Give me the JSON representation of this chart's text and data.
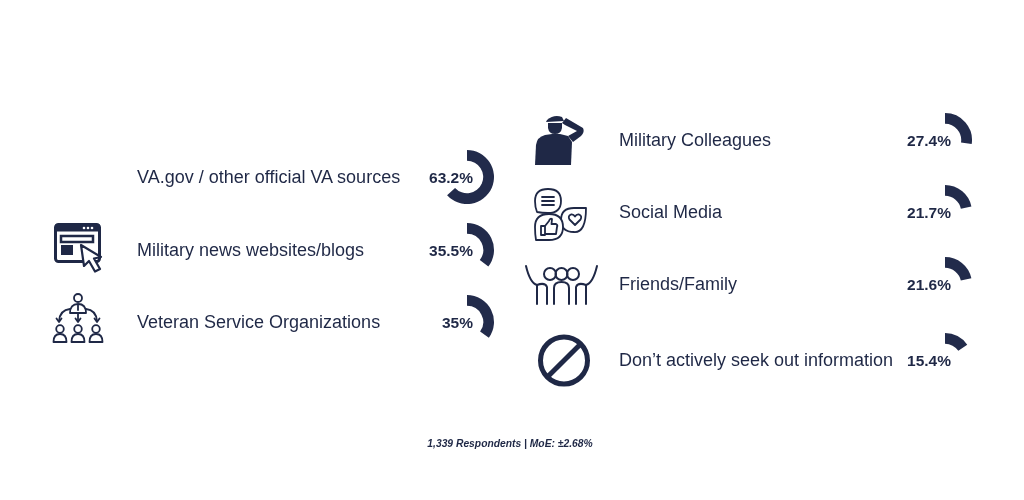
{
  "chart_data": {
    "type": "other",
    "categories": [
      "VA.gov / other official VA sources",
      "Military news websites/blogs",
      "Veteran Service Organizations",
      "Military Colleagues",
      "Social Media",
      "Friends/Family",
      "Don’t actively seek out information"
    ],
    "values": [
      63.2,
      35.5,
      35,
      27.4,
      21.7,
      21.6,
      15.4
    ],
    "value_labels": [
      "63.2%",
      "35.5%",
      "35%",
      "27.4%",
      "21.7%",
      "21.6%",
      "15.4%"
    ],
    "color": "#222b4b",
    "annotations": [
      "1,339 Respondents | MoE: ±2.68%"
    ]
  }
}
